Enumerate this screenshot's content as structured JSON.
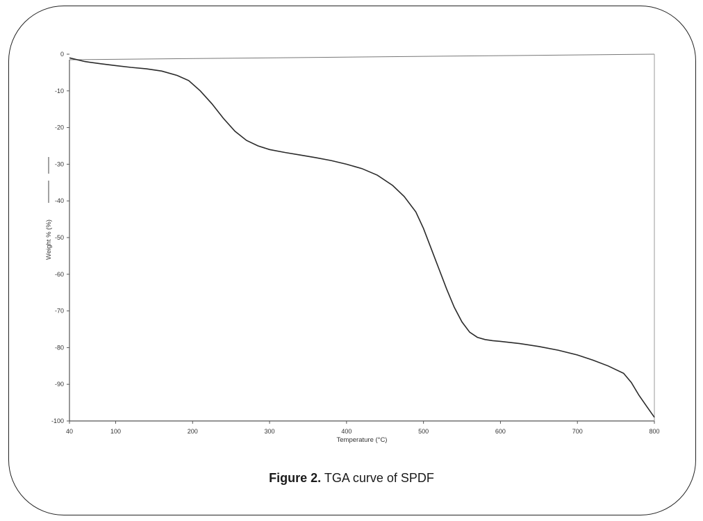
{
  "caption": {
    "label": "Figure 2.",
    "text": "TGA curve of SPDF"
  },
  "chart_data": {
    "type": "line",
    "title": "",
    "xlabel": "Temperature (°C)",
    "ylabel": "Weight % (%)",
    "xlim": [
      40,
      800
    ],
    "ylim": [
      -100,
      0
    ],
    "xticks": [
      40,
      100,
      200,
      300,
      400,
      500,
      600,
      700,
      800
    ],
    "yticks": [
      0,
      -10,
      -20,
      -30,
      -40,
      -50,
      -60,
      -70,
      -80,
      -90,
      -100
    ],
    "grid": false,
    "legend": "none",
    "series": [
      {
        "color": "#2a2a2a",
        "x": [
          40,
          60,
          80,
          100,
          120,
          140,
          160,
          180,
          195,
          210,
          225,
          240,
          255,
          270,
          285,
          300,
          320,
          340,
          360,
          380,
          400,
          420,
          440,
          460,
          475,
          490,
          500,
          510,
          520,
          530,
          540,
          550,
          560,
          570,
          580,
          590,
          600,
          625,
          650,
          675,
          700,
          720,
          740,
          760,
          770,
          780,
          790,
          800
        ],
        "values": [
          -1,
          -2,
          -2.6,
          -3.1,
          -3.6,
          -4.0,
          -4.6,
          -5.8,
          -7.2,
          -10,
          -13.5,
          -17.5,
          -21,
          -23.5,
          -25,
          -26,
          -26.8,
          -27.5,
          -28.2,
          -29,
          -30,
          -31.2,
          -33,
          -35.8,
          -38.8,
          -43,
          -47.5,
          -53,
          -58.5,
          -64,
          -69,
          -73,
          -75.8,
          -77.2,
          -77.8,
          -78.1,
          -78.3,
          -78.9,
          -79.7,
          -80.7,
          -82,
          -83.4,
          -85,
          -87,
          -89.5,
          -93,
          -96,
          -99
        ]
      }
    ]
  }
}
